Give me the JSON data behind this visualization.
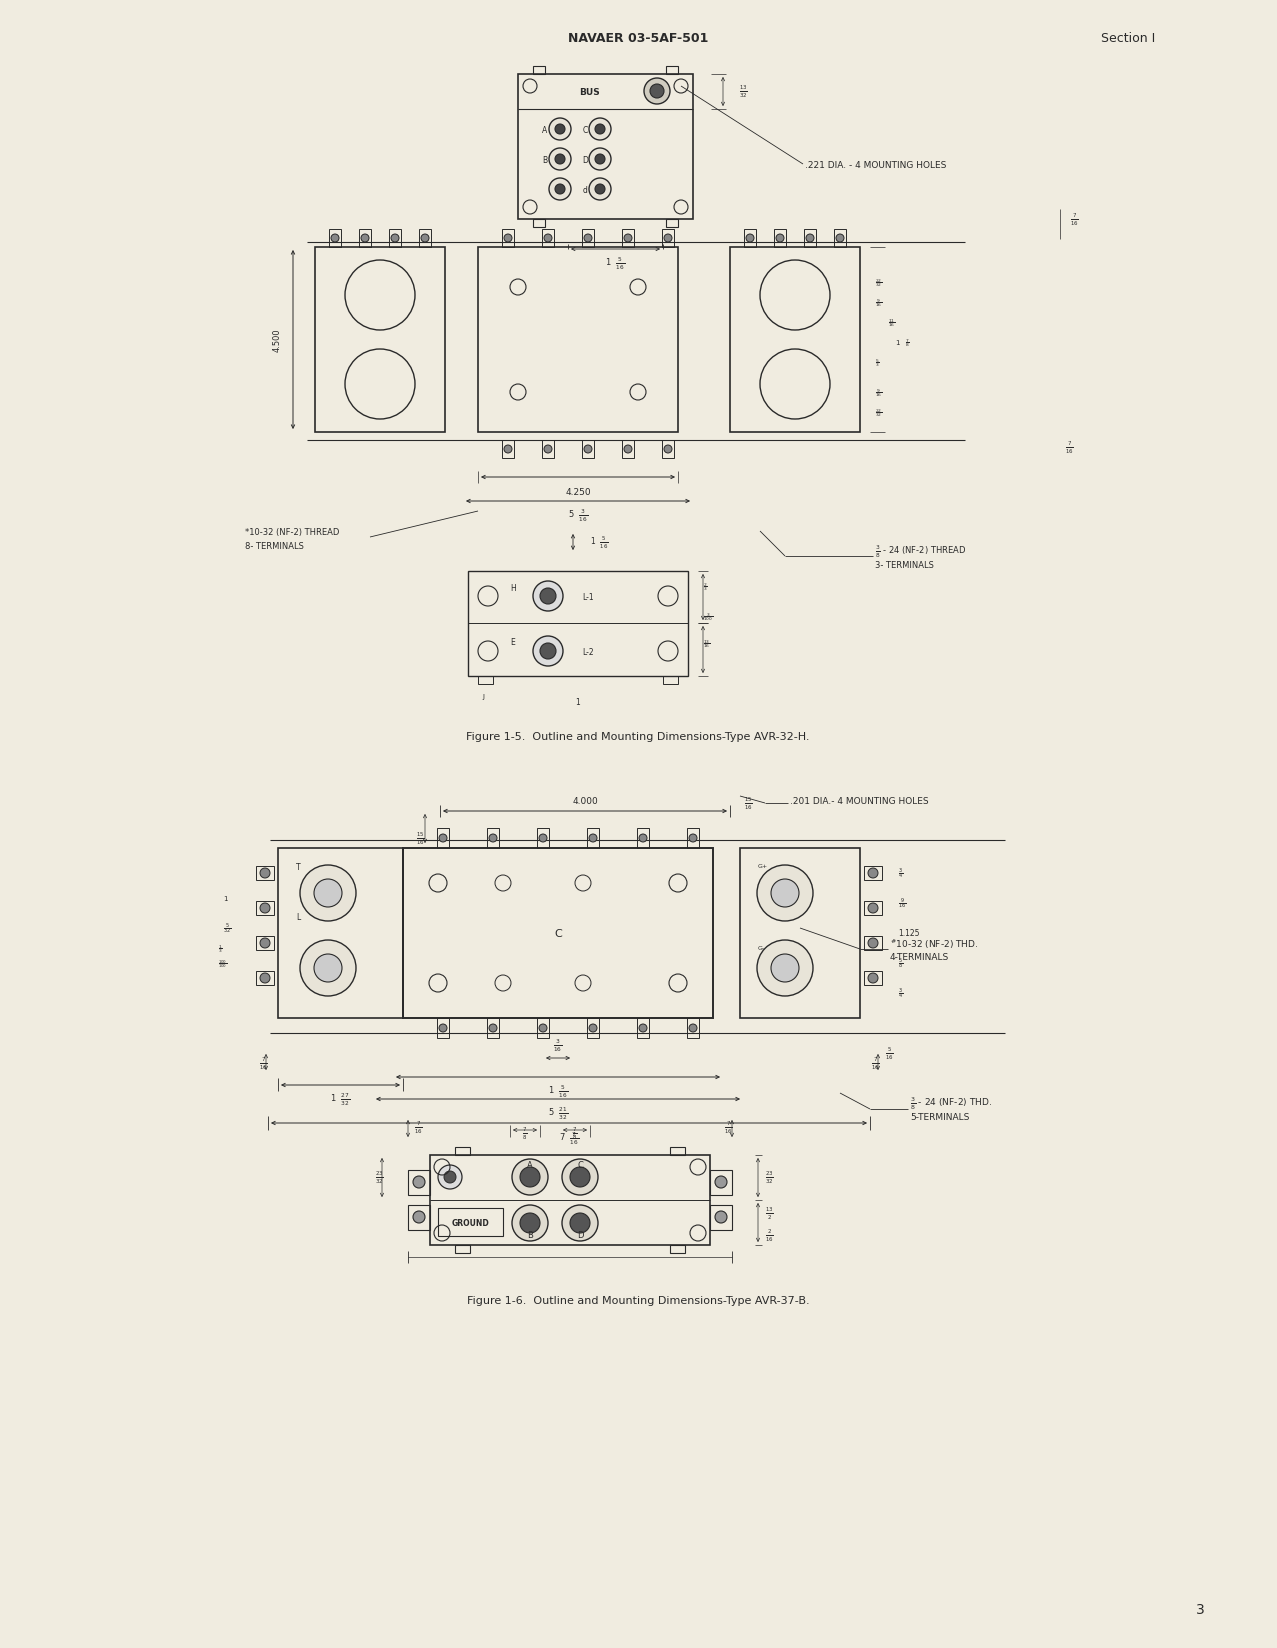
{
  "page_bg_color": "#f0ece0",
  "header_center_text": "NAVAER 03-5AF-501",
  "header_right_text": "Section I",
  "footer_page_num": "3",
  "fig1_caption": "Figure 1-5.  Outline and Mounting Dimensions-Type AVR-32-H.",
  "fig2_caption": "Figure 1-6.  Outline and Mounting Dimensions-Type AVR-37-B.",
  "line_color": "#2a2a2a",
  "text_color": "#2a2a2a"
}
